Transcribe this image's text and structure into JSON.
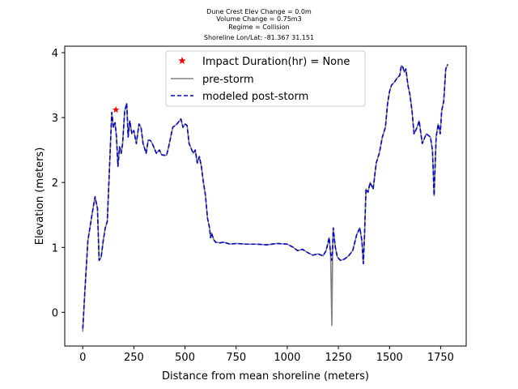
{
  "chart_data": {
    "type": "line",
    "title_lines": [
      "Dune Crest Elev Change = 0.0m",
      "Volume Change = 0.75m3",
      "Regime = Collision",
      "Shoreline Lon/Lat: -81.367 31.151"
    ],
    "xlabel": "Distance from mean shoreline (meters)",
    "ylabel": "Elevation (meters)",
    "xlim": [
      -88,
      1875
    ],
    "ylim": [
      -0.52,
      4.1
    ],
    "xticks": [
      0,
      250,
      500,
      750,
      1000,
      1250,
      1500,
      1750
    ],
    "yticks": [
      0,
      1,
      2,
      3,
      4
    ],
    "legend_position": "top-center",
    "series": [
      {
        "name": "Impact Duration(hr) = None",
        "style": "marker-star",
        "color": "#ff0000",
        "x": [
          162
        ],
        "y": [
          3.12
        ]
      },
      {
        "name": "pre-storm",
        "style": "solid",
        "color": "#808080",
        "x": [
          0,
          10,
          25,
          45,
          60,
          72,
          80,
          90,
          100,
          110,
          120,
          135,
          142,
          150,
          158,
          165,
          172,
          180,
          188,
          195,
          205,
          215,
          222,
          230,
          240,
          250,
          262,
          275,
          285,
          295,
          310,
          320,
          330,
          340,
          360,
          375,
          385,
          395,
          410,
          420,
          440,
          460,
          480,
          490,
          500,
          510,
          520,
          540,
          550,
          560,
          570,
          580,
          590,
          600,
          610,
          620,
          625,
          630,
          640,
          650,
          670,
          690,
          720,
          750,
          800,
          850,
          900,
          950,
          1000,
          1030,
          1050,
          1075,
          1100,
          1125,
          1150,
          1175,
          1190,
          1205,
          1212,
          1218,
          1222,
          1225,
          1228,
          1235,
          1245,
          1260,
          1280,
          1300,
          1320,
          1340,
          1355,
          1365,
          1372,
          1378,
          1385,
          1395,
          1405,
          1420,
          1435,
          1450,
          1465,
          1480,
          1490,
          1500,
          1510,
          1525,
          1535,
          1550,
          1558,
          1565,
          1572,
          1580,
          1590,
          1600,
          1610,
          1620,
          1635,
          1645,
          1660,
          1680,
          1700,
          1710,
          1718,
          1728,
          1738,
          1748,
          1755,
          1765,
          1775,
          1785
        ],
        "y": [
          -0.3,
          0.3,
          1.1,
          1.5,
          1.78,
          1.6,
          0.8,
          0.85,
          1.1,
          1.3,
          1.4,
          2.55,
          3.08,
          2.85,
          2.92,
          2.7,
          2.25,
          2.55,
          2.45,
          2.6,
          3.1,
          3.22,
          2.7,
          2.95,
          2.75,
          2.8,
          2.6,
          2.9,
          2.85,
          2.6,
          2.45,
          2.65,
          2.65,
          2.6,
          2.45,
          2.5,
          2.43,
          2.42,
          2.42,
          2.55,
          2.85,
          2.9,
          2.98,
          2.85,
          2.9,
          2.88,
          2.6,
          2.45,
          2.5,
          2.3,
          2.4,
          2.25,
          2.0,
          1.8,
          1.45,
          1.3,
          1.15,
          1.22,
          1.12,
          1.08,
          1.07,
          1.08,
          1.05,
          1.06,
          1.05,
          1.05,
          1.04,
          1.06,
          1.05,
          1.0,
          0.95,
          0.97,
          0.92,
          0.88,
          0.9,
          0.87,
          0.95,
          1.15,
          0.9,
          -0.2,
          1.0,
          1.3,
          1.2,
          1.0,
          0.85,
          0.8,
          0.82,
          0.87,
          0.95,
          1.2,
          1.3,
          1.1,
          0.75,
          1.2,
          1.9,
          1.85,
          2.0,
          1.9,
          2.3,
          2.45,
          2.7,
          2.85,
          3.2,
          3.4,
          3.5,
          3.55,
          3.6,
          3.65,
          3.8,
          3.78,
          3.7,
          3.75,
          3.5,
          3.35,
          3.1,
          2.75,
          2.85,
          2.95,
          2.6,
          2.75,
          2.7,
          2.5,
          1.8,
          2.7,
          2.9,
          2.75,
          3.1,
          3.25,
          3.75,
          3.82
        ]
      },
      {
        "name": "modeled post-storm",
        "style": "dashed",
        "color": "#0000cc",
        "x": [
          0,
          10,
          25,
          45,
          60,
          72,
          80,
          90,
          100,
          110,
          120,
          135,
          142,
          150,
          158,
          165,
          172,
          180,
          188,
          195,
          205,
          215,
          222,
          230,
          240,
          250,
          262,
          275,
          285,
          295,
          310,
          320,
          330,
          340,
          360,
          375,
          385,
          395,
          410,
          420,
          440,
          460,
          480,
          490,
          500,
          510,
          520,
          540,
          550,
          560,
          570,
          580,
          590,
          600,
          610,
          620,
          625,
          630,
          640,
          650,
          670,
          690,
          720,
          750,
          800,
          850,
          900,
          950,
          1000,
          1030,
          1050,
          1075,
          1100,
          1125,
          1150,
          1175,
          1190,
          1205,
          1212,
          1218,
          1222,
          1225,
          1228,
          1235,
          1245,
          1260,
          1280,
          1300,
          1320,
          1340,
          1355,
          1365,
          1372,
          1378,
          1385,
          1395,
          1405,
          1420,
          1435,
          1450,
          1465,
          1480,
          1490,
          1500,
          1510,
          1525,
          1535,
          1550,
          1558,
          1565,
          1572,
          1580,
          1590,
          1600,
          1610,
          1620,
          1635,
          1645,
          1660,
          1680,
          1700,
          1710,
          1718,
          1728,
          1738,
          1748,
          1755,
          1765,
          1775,
          1785
        ],
        "y": [
          -0.25,
          0.3,
          1.1,
          1.5,
          1.78,
          1.6,
          0.8,
          0.85,
          1.1,
          1.3,
          1.4,
          2.55,
          3.08,
          2.85,
          2.92,
          2.7,
          2.25,
          2.55,
          2.45,
          2.6,
          3.1,
          3.22,
          2.7,
          2.95,
          2.75,
          2.8,
          2.6,
          2.9,
          2.85,
          2.6,
          2.45,
          2.65,
          2.65,
          2.6,
          2.45,
          2.5,
          2.43,
          2.42,
          2.42,
          2.55,
          2.85,
          2.9,
          2.98,
          2.85,
          2.9,
          2.88,
          2.6,
          2.45,
          2.5,
          2.3,
          2.4,
          2.25,
          2.0,
          1.8,
          1.45,
          1.3,
          1.15,
          1.22,
          1.12,
          1.08,
          1.07,
          1.08,
          1.05,
          1.06,
          1.05,
          1.05,
          1.04,
          1.06,
          1.05,
          1.0,
          0.95,
          0.97,
          0.92,
          0.88,
          0.9,
          0.87,
          0.95,
          1.15,
          0.9,
          0.8,
          1.0,
          1.3,
          1.2,
          1.0,
          0.85,
          0.8,
          0.82,
          0.87,
          0.95,
          1.2,
          1.3,
          1.1,
          0.75,
          1.2,
          1.9,
          1.85,
          2.0,
          1.9,
          2.3,
          2.45,
          2.7,
          2.85,
          3.2,
          3.4,
          3.5,
          3.55,
          3.6,
          3.65,
          3.8,
          3.78,
          3.7,
          3.75,
          3.5,
          3.35,
          3.1,
          2.75,
          2.85,
          2.95,
          2.6,
          2.75,
          2.7,
          2.5,
          1.8,
          2.7,
          2.9,
          2.75,
          3.1,
          3.25,
          3.75,
          3.82
        ]
      }
    ]
  }
}
